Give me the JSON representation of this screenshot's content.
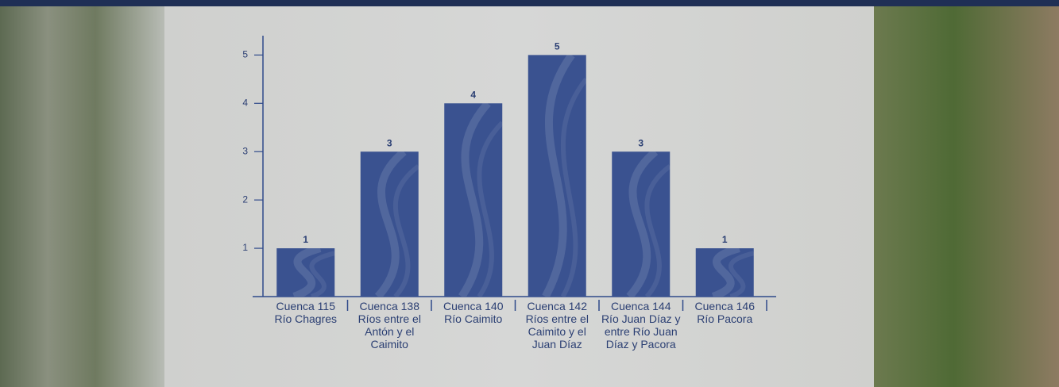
{
  "chart_data": {
    "type": "bar",
    "categories": [
      "Cuenca 115 Río Chagres",
      "Cuenca 138 Ríos entre el Antón y el Caimito",
      "Cuenca 140 Río Caimito",
      "Cuenca 142 Ríos entre el Caimito y el Juan Díaz",
      "Cuenca 144 Río Juan Díaz y entre Río Juan Díaz y Pacora",
      "Cuenca 146 Río Pacora"
    ],
    "values": [
      1,
      3,
      4,
      5,
      3,
      1
    ],
    "color": "#3a5290",
    "ylim": [
      0,
      5.4
    ],
    "yticks": [
      1,
      2,
      3,
      4,
      5
    ],
    "grid": false
  }
}
